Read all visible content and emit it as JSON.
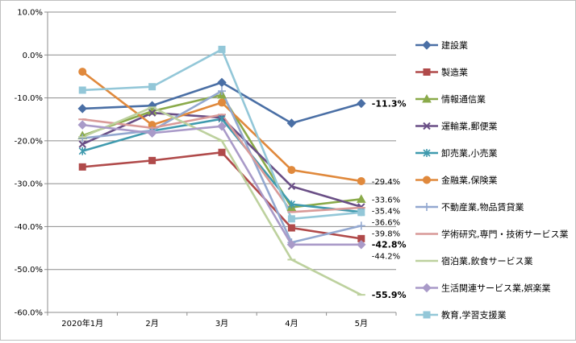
{
  "chart_data": {
    "type": "line",
    "categories": [
      "2020年1月",
      "2月",
      "3月",
      "4月",
      "5月"
    ],
    "ylim": [
      -60,
      10
    ],
    "yticks": [
      10,
      0,
      -10,
      -20,
      -30,
      -40,
      -50,
      -60
    ],
    "ytick_labels": [
      "10.0%",
      "0.0%",
      "-10.0%",
      "-20.0%",
      "-30.0%",
      "-40.0%",
      "-50.0%",
      "-60.0%"
    ],
    "grid": "horizontal",
    "legend_position": "right",
    "series": [
      {
        "name": "建設業",
        "color": "#4A6FA5",
        "marker": "diamond",
        "values": [
          -12.5,
          -11.8,
          -6.4,
          -15.9,
          -11.3
        ],
        "end_label": "-11.3%",
        "end_bold": true
      },
      {
        "name": "製造業",
        "color": "#B04A4A",
        "marker": "square",
        "values": [
          -26.1,
          -24.6,
          -22.7,
          -40.3,
          -42.8
        ],
        "end_label": "-42.8%",
        "end_bold": true
      },
      {
        "name": "情報通信業",
        "color": "#8AAA4A",
        "marker": "triangle",
        "values": [
          -18.8,
          -13.1,
          -9.3,
          -35.5,
          -33.6
        ],
        "end_label": "-33.6%",
        "end_bold": false
      },
      {
        "name": "運輸業,郵便業",
        "color": "#6A4F86",
        "marker": "x",
        "values": [
          -20.8,
          -13.5,
          -14.6,
          -30.6,
          -35.4
        ],
        "end_label": "-35.4%",
        "end_bold": false
      },
      {
        "name": "卸売業,小売業",
        "color": "#3F9AAE",
        "marker": "asterisk",
        "values": [
          -22.4,
          -17.7,
          -14.9,
          -34.8,
          -36.6
        ],
        "end_label": "-36.6%",
        "end_bold": false
      },
      {
        "name": "金融業,保険業",
        "color": "#E0893C",
        "marker": "circle",
        "values": [
          -3.9,
          -16.3,
          -11.1,
          -26.8,
          -29.4
        ],
        "end_label": "-29.4%",
        "end_bold": false
      },
      {
        "name": "不動産業,物品賃貸業",
        "color": "#93A8D0",
        "marker": "plus",
        "values": [
          -19.4,
          -17.6,
          -8.4,
          -43.7,
          -39.8
        ],
        "end_label": "-39.8%",
        "end_bold": false
      },
      {
        "name": "学術研究,専門・技術サービス業",
        "color": "#D99A98",
        "marker": "dash",
        "values": [
          -15.0,
          -17.0,
          -13.9,
          -36.6,
          -35.6
        ],
        "end_label": "",
        "end_bold": false
      },
      {
        "name": "宿泊業,飲食サービス業",
        "color": "#BDD19E",
        "marker": "dash",
        "values": [
          -19.1,
          -12.2,
          -20.0,
          -47.7,
          -55.9
        ],
        "end_label": "-55.9%",
        "end_bold": true
      },
      {
        "name": "生活関連サービス業,娯楽業",
        "color": "#A99AC8",
        "marker": "diamond",
        "values": [
          -16.3,
          -18.2,
          -16.6,
          -44.2,
          -44.2
        ],
        "end_label": "-44.2%",
        "end_bold": false
      },
      {
        "name": "教育,学習支援業",
        "color": "#93C7D8",
        "marker": "square",
        "values": [
          -8.2,
          -7.4,
          1.3,
          -38.2,
          -36.7
        ],
        "end_label": "",
        "end_bold": false
      }
    ]
  }
}
